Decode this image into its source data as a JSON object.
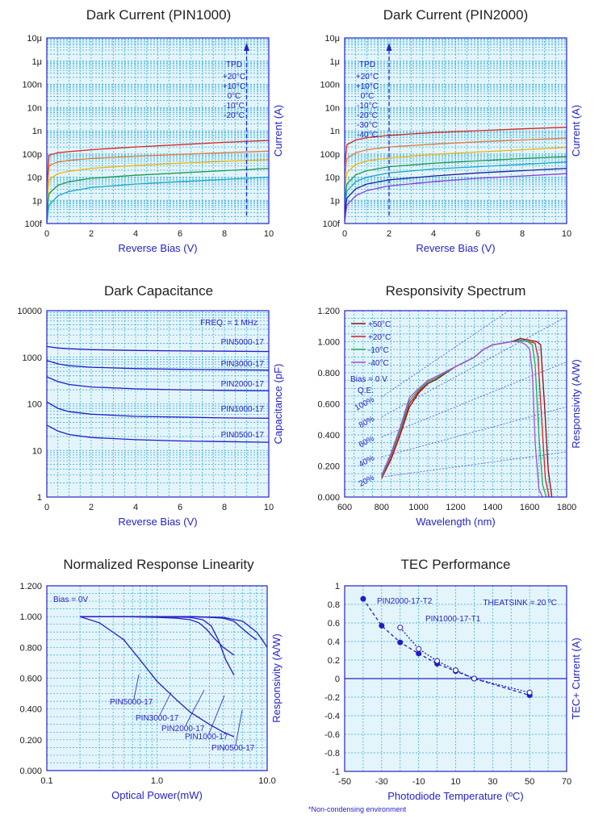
{
  "chart_data": [
    {
      "id": "dark_current_pin1000",
      "type": "line",
      "title": "Dark Current (PIN1000)",
      "xlabel": "Reverse Bias (V)",
      "ylabel": "Current (A)",
      "xlim": [
        0,
        10
      ],
      "ylim_log10": [
        -13,
        -5
      ],
      "y_scale": "log",
      "x_ticks": [
        "0",
        "2",
        "4",
        "6",
        "8",
        "10"
      ],
      "y_ticks": [
        "100f",
        "1p",
        "10p",
        "100p",
        "1n",
        "10n",
        "100n",
        "1μ",
        "10μ"
      ],
      "legend_title": "TPD",
      "legend_location": "upper-right",
      "arrow_x": 9,
      "series": [
        {
          "name": "+20°C",
          "color": "#d9261c",
          "x": [
            0,
            0.1,
            0.5,
            1,
            2,
            4,
            6,
            8,
            10
          ],
          "y": [
            -11.4,
            -10.05,
            -9.95,
            -9.9,
            -9.82,
            -9.7,
            -9.6,
            -9.5,
            -9.42
          ]
        },
        {
          "name": "+10°C",
          "color": "#e07a3a",
          "x": [
            0,
            0.1,
            0.5,
            1,
            2,
            4,
            6,
            8,
            10
          ],
          "y": [
            -11.8,
            -10.5,
            -10.35,
            -10.28,
            -10.2,
            -10.1,
            -10.02,
            -9.95,
            -9.88
          ]
        },
        {
          "name": "0°C",
          "color": "#f0b400",
          "x": [
            0,
            0.1,
            0.5,
            1,
            2,
            4,
            6,
            8,
            10
          ],
          "y": [
            -12.2,
            -11.1,
            -10.85,
            -10.75,
            -10.62,
            -10.5,
            -10.4,
            -10.32,
            -10.25
          ]
        },
        {
          "name": "-10°C",
          "color": "#1a9a4a",
          "x": [
            0,
            0.1,
            0.5,
            1,
            2,
            4,
            6,
            8,
            10
          ],
          "y": [
            -12.6,
            -11.7,
            -11.35,
            -11.2,
            -11.05,
            -10.92,
            -10.82,
            -10.72,
            -10.62
          ]
        },
        {
          "name": "-20°C",
          "color": "#18a8c8",
          "x": [
            0,
            0.1,
            0.5,
            1,
            2,
            4,
            6,
            8,
            10
          ],
          "y": [
            -13,
            -12.2,
            -11.8,
            -11.62,
            -11.45,
            -11.3,
            -11.2,
            -11.1,
            -11.0
          ]
        }
      ]
    },
    {
      "id": "dark_current_pin2000",
      "type": "line",
      "title": "Dark Current (PIN2000)",
      "xlabel": "Reverse Bias (V)",
      "ylabel": "Current (A)",
      "xlim": [
        0,
        10
      ],
      "ylim_log10": [
        -13,
        -5
      ],
      "y_scale": "log",
      "x_ticks": [
        "0",
        "2",
        "4",
        "6",
        "8",
        "10"
      ],
      "y_ticks": [
        "100f",
        "1p",
        "10p",
        "100p",
        "1n",
        "10n",
        "100n",
        "1μ",
        "10μ"
      ],
      "legend_title": "TPD",
      "legend_location": "upper-left",
      "arrow_x": 2,
      "series": [
        {
          "name": "+20°C",
          "color": "#d9261c",
          "x": [
            0,
            0.1,
            0.5,
            1,
            2,
            4,
            6,
            8,
            10
          ],
          "y": [
            -10.5,
            -9.6,
            -9.4,
            -9.3,
            -9.2,
            -9.08,
            -9.0,
            -8.92,
            -8.85
          ]
        },
        {
          "name": "+10°C",
          "color": "#e07a3a",
          "x": [
            0,
            0.1,
            0.5,
            1,
            2,
            4,
            6,
            8,
            10
          ],
          "y": [
            -11.0,
            -10.2,
            -9.95,
            -9.82,
            -9.7,
            -9.58,
            -9.48,
            -9.4,
            -9.32
          ]
        },
        {
          "name": "0°C",
          "color": "#f0b400",
          "x": [
            0,
            0.1,
            0.5,
            1,
            2,
            4,
            6,
            8,
            10
          ],
          "y": [
            -11.5,
            -10.8,
            -10.45,
            -10.3,
            -10.18,
            -10.02,
            -9.92,
            -9.82,
            -9.72
          ]
        },
        {
          "name": "-10°C",
          "color": "#1a9a4a",
          "x": [
            0,
            0.1,
            0.5,
            1,
            2,
            4,
            6,
            8,
            10
          ],
          "y": [
            -12.0,
            -11.3,
            -10.9,
            -10.72,
            -10.55,
            -10.4,
            -10.3,
            -10.2,
            -10.12
          ]
        },
        {
          "name": "-20°C",
          "color": "#18a8c8",
          "x": [
            0,
            0.1,
            0.5,
            1,
            2,
            4,
            6,
            8,
            10
          ],
          "y": [
            -12.3,
            -11.6,
            -11.2,
            -11.0,
            -10.82,
            -10.65,
            -10.55,
            -10.45,
            -10.35
          ]
        },
        {
          "name": "-30°C",
          "color": "#1e1e9a",
          "x": [
            0,
            0.1,
            0.5,
            1,
            2,
            4,
            6,
            8,
            10
          ],
          "y": [
            -12.6,
            -11.9,
            -11.5,
            -11.3,
            -11.12,
            -10.95,
            -10.82,
            -10.72,
            -10.62
          ]
        },
        {
          "name": "-40°C",
          "color": "#8a3ad9",
          "x": [
            0,
            0.1,
            0.5,
            1,
            2,
            4,
            6,
            8,
            10
          ],
          "y": [
            -12.9,
            -12.2,
            -11.8,
            -11.58,
            -11.38,
            -11.2,
            -11.05,
            -10.95,
            -10.85
          ]
        }
      ]
    },
    {
      "id": "dark_capacitance",
      "type": "line",
      "title": "Dark Capacitance",
      "xlabel": "Reverse Bias (V)",
      "ylabel": "Capacitance (pF)",
      "xlim": [
        0,
        10
      ],
      "ylim_log10": [
        0,
        4
      ],
      "y_scale": "log",
      "x_ticks": [
        "0",
        "2",
        "4",
        "6",
        "8",
        "10"
      ],
      "y_ticks": [
        "1",
        "10",
        "100",
        "1000",
        "10000"
      ],
      "annotation": "FREQ. = 1 MHz",
      "series": [
        {
          "name": "PIN5000-17",
          "color": "#1e1ec8",
          "x": [
            0,
            0.5,
            1,
            2,
            4,
            6,
            8,
            10
          ],
          "y": [
            1700,
            1580,
            1520,
            1460,
            1400,
            1370,
            1350,
            1330
          ]
        },
        {
          "name": "PIN3000-17",
          "color": "#1e1ec8",
          "x": [
            0,
            0.5,
            1,
            2,
            4,
            6,
            8,
            10
          ],
          "y": [
            850,
            720,
            660,
            610,
            570,
            550,
            540,
            530
          ]
        },
        {
          "name": "PIN2000-17",
          "color": "#1e1ec8",
          "x": [
            0,
            0.5,
            1,
            2,
            4,
            6,
            8,
            10
          ],
          "y": [
            380,
            300,
            260,
            230,
            210,
            200,
            195,
            190
          ]
        },
        {
          "name": "PIN1000-17",
          "color": "#1e1ec8",
          "x": [
            0,
            0.5,
            1,
            2,
            4,
            6,
            8,
            10
          ],
          "y": [
            110,
            80,
            68,
            60,
            54,
            52,
            50,
            49
          ]
        },
        {
          "name": "PIN0500-17",
          "color": "#1e1ec8",
          "x": [
            0,
            0.5,
            1,
            2,
            4,
            6,
            8,
            10
          ],
          "y": [
            35,
            26,
            22,
            19,
            17,
            16,
            15.5,
            15
          ]
        }
      ]
    },
    {
      "id": "responsivity_spectrum",
      "type": "line",
      "title": "Responsivity Spectrum",
      "xlabel": "Wavelength (nm)",
      "ylabel": "Responsivity (A/W)",
      "xlim": [
        600,
        1800
      ],
      "ylim": [
        0,
        1.2
      ],
      "x_ticks": [
        "600",
        "800",
        "1000",
        "1200",
        "1400",
        "1600",
        "1800"
      ],
      "y_ticks": [
        "0.000",
        "0.200",
        "0.400",
        "0.600",
        "0.800",
        "1.000",
        "1.200"
      ],
      "annotation": "Bias = 0 V",
      "qe_title": "Q.E.",
      "qe_lines": [
        "100%",
        "80%",
        "60%",
        "40%",
        "20%"
      ],
      "qe_values": [
        1.0,
        0.8,
        0.6,
        0.4,
        0.2
      ],
      "series": [
        {
          "name": "+50°C",
          "color": "#8b1010",
          "x": [
            800,
            850,
            900,
            950,
            1000,
            1050,
            1100,
            1200,
            1300,
            1350,
            1400,
            1500,
            1550,
            1600,
            1640,
            1660,
            1680,
            1700,
            1720
          ],
          "y": [
            0.12,
            0.24,
            0.4,
            0.58,
            0.67,
            0.73,
            0.76,
            0.84,
            0.9,
            0.95,
            0.98,
            1.0,
            1.02,
            1.01,
            1.0,
            0.98,
            0.6,
            0.18,
            0.0
          ]
        },
        {
          "name": "+20°C",
          "color": "#e01c1c",
          "x": [
            800,
            850,
            900,
            950,
            1000,
            1050,
            1100,
            1200,
            1300,
            1350,
            1400,
            1500,
            1550,
            1600,
            1630,
            1645,
            1665,
            1685,
            1705
          ],
          "y": [
            0.12,
            0.25,
            0.41,
            0.6,
            0.68,
            0.74,
            0.77,
            0.84,
            0.9,
            0.95,
            0.98,
            1.0,
            1.01,
            1.0,
            0.99,
            0.9,
            0.5,
            0.12,
            0.0
          ]
        },
        {
          "name": "-10°C",
          "color": "#18b050",
          "x": [
            800,
            850,
            900,
            950,
            1000,
            1050,
            1100,
            1200,
            1300,
            1350,
            1400,
            1500,
            1550,
            1590,
            1615,
            1630,
            1650,
            1670,
            1690
          ],
          "y": [
            0.13,
            0.27,
            0.43,
            0.62,
            0.69,
            0.74,
            0.77,
            0.84,
            0.9,
            0.95,
            0.98,
            1.0,
            1.01,
            1.0,
            0.98,
            0.85,
            0.4,
            0.08,
            0.0
          ]
        },
        {
          "name": "-40°C",
          "color": "#a64ae0",
          "x": [
            800,
            850,
            900,
            950,
            1000,
            1050,
            1100,
            1200,
            1300,
            1350,
            1400,
            1500,
            1550,
            1580,
            1600,
            1615,
            1630,
            1650,
            1670
          ],
          "y": [
            0.14,
            0.28,
            0.45,
            0.64,
            0.7,
            0.75,
            0.78,
            0.84,
            0.9,
            0.95,
            0.98,
            1.0,
            1.0,
            0.98,
            0.95,
            0.8,
            0.35,
            0.05,
            0.0
          ]
        }
      ]
    },
    {
      "id": "normalized_response_linearity",
      "type": "line",
      "title": "Normalized Response Linearity",
      "xlabel": "Optical Power(mW)",
      "ylabel": "Responsivity (A/W)",
      "xlim_log10": [
        -1,
        1
      ],
      "x_scale": "log",
      "ylim": [
        0,
        1.2
      ],
      "x_ticks": [
        "0.1",
        "1.0",
        "10.0"
      ],
      "y_ticks": [
        "0.000",
        "0.200",
        "0.400",
        "0.600",
        "0.800",
        "1.000",
        "1.200"
      ],
      "annotation": "Bias = 0V",
      "series": [
        {
          "name": "PIN5000-17",
          "color": "#1e1ec8",
          "x": [
            0.2,
            0.3,
            0.5,
            0.7,
            1.0,
            1.5,
            2.0,
            3.0,
            4.0,
            5.0
          ],
          "y": [
            1.0,
            0.96,
            0.85,
            0.72,
            0.58,
            0.46,
            0.38,
            0.3,
            0.25,
            0.22
          ]
        },
        {
          "name": "PIN3000-17",
          "color": "#1e1ec8",
          "x": [
            0.2,
            0.5,
            1.0,
            1.5,
            2.0,
            2.4,
            2.8,
            3.3,
            4.0,
            5.0
          ],
          "y": [
            1.0,
            1.0,
            0.995,
            0.99,
            0.98,
            0.96,
            0.92,
            0.86,
            0.8,
            0.75
          ]
        },
        {
          "name": "PIN2000-17",
          "color": "#1e1ec8",
          "x": [
            0.2,
            0.5,
            1.0,
            2.0,
            2.6,
            3.1,
            3.6,
            4.2,
            5.0
          ],
          "y": [
            1.0,
            1.0,
            1.0,
            0.995,
            0.98,
            0.94,
            0.85,
            0.72,
            0.62
          ]
        },
        {
          "name": "PIN1000-17",
          "color": "#1e1ec8",
          "x": [
            0.2,
            0.5,
            1.0,
            2.0,
            3.0,
            4.0,
            5.0,
            6.0,
            7.0,
            8.0
          ],
          "y": [
            1.0,
            1.0,
            1.0,
            1.0,
            0.995,
            0.99,
            0.97,
            0.92,
            0.88,
            0.85
          ]
        },
        {
          "name": "PIN0500-17",
          "color": "#1e1ec8",
          "x": [
            0.2,
            0.5,
            1.0,
            2.0,
            4.0,
            6.0,
            8.0,
            9.0,
            10.0
          ],
          "y": [
            1.0,
            1.0,
            1.0,
            1.0,
            0.995,
            0.97,
            0.9,
            0.85,
            0.8
          ]
        }
      ],
      "label_series": [
        "PIN5000-17",
        "PIN3000-17",
        "PIN2000-17",
        "PIN1000-17",
        "PIN0500-17"
      ]
    },
    {
      "id": "tec_performance",
      "type": "line",
      "title": "TEC Performance",
      "xlabel": "Photodiode Temperature (ºC)",
      "ylabel": "TEC+ Current (A)",
      "xlim": [
        -50,
        70
      ],
      "ylim": [
        -1,
        1
      ],
      "x_ticks": [
        "-50",
        "-30",
        "-10",
        "10",
        "30",
        "50",
        "70"
      ],
      "y_ticks": [
        "-1",
        "-0.8",
        "-0.6",
        "-0.4",
        "-0.2",
        "0",
        "0.2",
        "0.4",
        "0.6",
        "0.8",
        "1"
      ],
      "annotation": "THEATSINK = 20 ºC",
      "footnote": "*Non-condensing environment",
      "series": [
        {
          "name": "PIN2000-17-T2",
          "color": "#1e1ec8",
          "marker": "filled",
          "x": [
            -40,
            -30,
            -20,
            -10,
            0,
            10,
            20,
            50
          ],
          "y": [
            0.86,
            0.57,
            0.39,
            0.27,
            0.16,
            0.08,
            0.0,
            -0.18
          ]
        },
        {
          "name": "PIN1000-17-T1",
          "color": "#1e1ec8",
          "marker": "open",
          "x": [
            -20,
            -10,
            0,
            10,
            20,
            50
          ],
          "y": [
            0.55,
            0.32,
            0.19,
            0.09,
            0.0,
            -0.15
          ]
        }
      ]
    }
  ]
}
